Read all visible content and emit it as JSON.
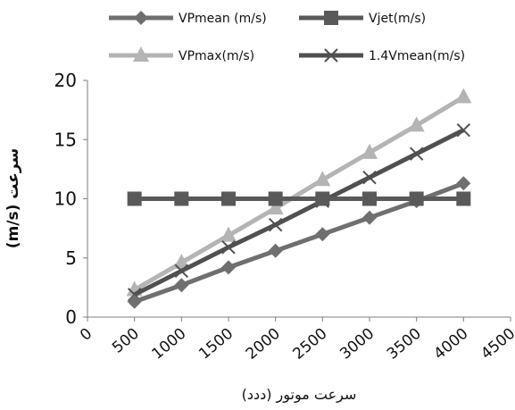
{
  "chart_data": {
    "type": "line",
    "xlabel": "سرعت موتور (ددد)",
    "ylabel": "(m/s) سرعت",
    "xlim": [
      0,
      4500
    ],
    "ylim": [
      0,
      20
    ],
    "x_ticks": [
      0,
      500,
      1000,
      1500,
      2000,
      2500,
      3000,
      3500,
      4000,
      4500
    ],
    "y_ticks": [
      0,
      5,
      10,
      15,
      20
    ],
    "legend_position": "top",
    "grid": false,
    "series": [
      {
        "name": "VPmean (m/s)",
        "color": "#6f6f6f",
        "marker": "diamond",
        "x": [
          500,
          1000,
          1500,
          2000,
          2500,
          3000,
          3500,
          4000
        ],
        "y": [
          1.3,
          2.7,
          4.2,
          5.6,
          7.0,
          8.4,
          9.8,
          11.3
        ]
      },
      {
        "name": "Vjet(m/s)",
        "color": "#595959",
        "marker": "square",
        "x": [
          500,
          1000,
          1500,
          2000,
          2500,
          3000,
          3500,
          4000
        ],
        "y": [
          10,
          10,
          10,
          10,
          10,
          10,
          10,
          10
        ]
      },
      {
        "name": "VPmax(m/s)",
        "color": "#b4b4b4",
        "marker": "triangle",
        "x": [
          500,
          1000,
          1500,
          2000,
          2500,
          3000,
          3500,
          4000
        ],
        "y": [
          2.3,
          4.6,
          6.9,
          9.2,
          11.6,
          13.9,
          16.2,
          18.6
        ]
      },
      {
        "name": "1.4Vmean(m/s)",
        "color": "#505050",
        "marker": "x",
        "x": [
          500,
          1000,
          1500,
          2000,
          2500,
          3000,
          3500,
          4000
        ],
        "y": [
          1.9,
          3.9,
          5.9,
          7.8,
          9.8,
          11.8,
          13.8,
          15.8
        ]
      }
    ]
  }
}
